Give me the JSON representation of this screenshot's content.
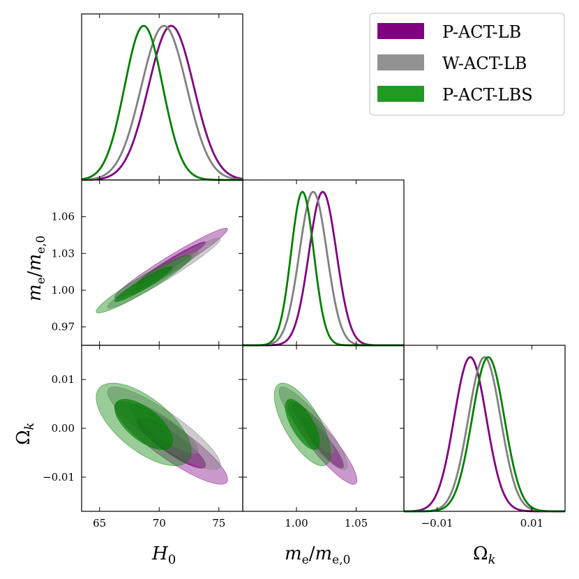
{
  "chart_data": {
    "type": "triangle-plot",
    "parameters": [
      {
        "key": "H0",
        "label": "H0",
        "ticks": [
          65,
          70,
          75
        ],
        "tick_labels": [
          "65",
          "70",
          "75"
        ],
        "range": [
          63.5,
          77
        ]
      },
      {
        "key": "me",
        "label": "me/me,0",
        "ticks": [
          0.97,
          1.0,
          1.03,
          1.06
        ],
        "tick_labels": [
          "0.97",
          "1.00",
          "1.03",
          "1.06"
        ],
        "x_ticks": [
          1.0,
          1.05
        ],
        "x_tick_labels": [
          "1.00",
          "1.05"
        ],
        "range": [
          0.955,
          1.09
        ]
      },
      {
        "key": "Ok",
        "label": "Ωk",
        "ticks": [
          -0.01,
          0.0,
          0.01
        ],
        "tick_labels": [
          "−0.01",
          "0.00",
          "0.01"
        ],
        "x_ticks": [
          -0.01,
          0.01
        ],
        "x_tick_labels": [
          "−0.01",
          "0.01"
        ],
        "range": [
          -0.017,
          0.017
        ]
      }
    ],
    "axis_labels": {
      "H0": "H",
      "H0_sub": "0",
      "me_num": "m",
      "me_sub": "e",
      "me_den": "m",
      "me_den_sub": "e,0",
      "Ok": "Ω",
      "Ok_sub": "k"
    },
    "series": [
      {
        "name": "P-ACT-LB",
        "color": "#800080",
        "mean": {
          "H0": 71.0,
          "me": 1.022,
          "Ok": -0.003
        },
        "sigma": {
          "H0": 1.9,
          "me": 0.0115,
          "Ok": 0.0034
        },
        "corr": {
          "H0_me": 0.97,
          "H0_Ok": -0.88,
          "me_Ok": -0.9
        }
      },
      {
        "name": "W-ACT-LB",
        "color": "#808080",
        "mean": {
          "H0": 70.4,
          "me": 1.014,
          "Ok": 0.0
        },
        "sigma": {
          "H0": 1.9,
          "me": 0.0115,
          "Ok": 0.0034
        },
        "corr": {
          "H0_me": 0.97,
          "H0_Ok": -0.88,
          "me_Ok": -0.9
        }
      },
      {
        "name": "P-ACT-LBS",
        "color": "#008000",
        "mean": {
          "H0": 68.7,
          "me": 1.005,
          "Ok": 0.0008
        },
        "sigma": {
          "H0": 1.6,
          "me": 0.0095,
          "Ok": 0.0034
        },
        "corr": {
          "H0_me": 0.95,
          "H0_Ok": -0.65,
          "me_Ok": -0.7
        }
      }
    ],
    "legend": {
      "position": "top-right",
      "entries": [
        "P-ACT-LB",
        "W-ACT-LB",
        "P-ACT-LBS"
      ]
    }
  }
}
